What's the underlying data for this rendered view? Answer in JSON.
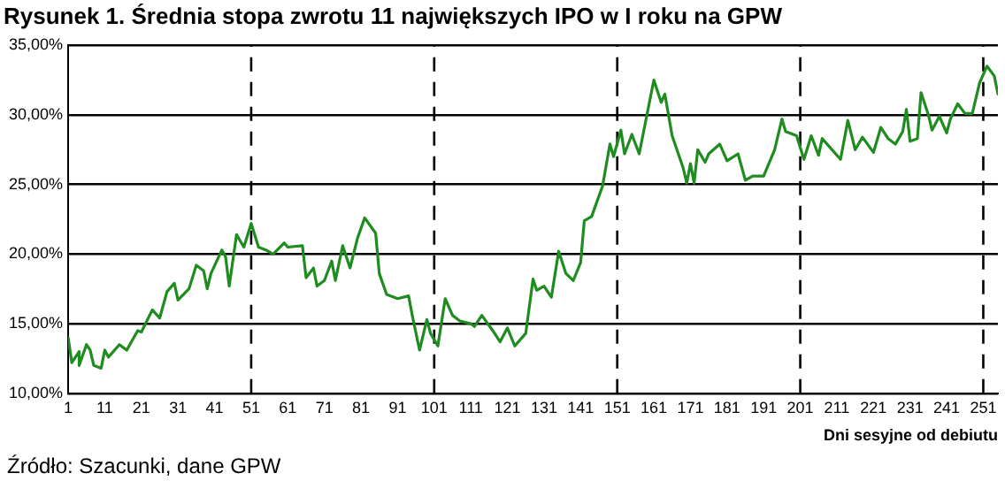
{
  "chart_data": {
    "type": "line",
    "title": "Rysunek 1. Średnia stopa zwrotu 11 największych IPO w I roku na GPW",
    "xlabel": "Dni sesyjne od debiutu",
    "annotations": [
      "Źródło: Szacunki, dane GPW"
    ],
    "x": [
      1,
      2,
      4,
      4,
      6,
      7,
      8,
      10,
      11,
      12,
      15,
      17,
      20,
      21,
      24,
      26,
      28,
      30,
      31,
      34,
      36,
      38,
      39,
      40,
      43,
      44,
      45,
      47,
      49,
      51,
      53,
      55,
      57,
      60,
      61,
      65,
      66,
      68,
      69,
      71,
      73,
      74,
      76,
      78,
      80,
      82,
      85,
      86,
      88,
      91,
      94,
      95,
      97,
      99,
      100,
      102,
      104,
      106,
      108,
      111,
      112,
      114,
      117,
      119,
      121,
      123,
      126,
      128,
      129,
      131,
      133,
      135,
      137,
      139,
      141,
      142,
      144,
      147,
      149,
      150,
      152,
      153,
      155,
      157,
      161,
      163,
      164,
      166,
      169,
      170,
      171,
      172,
      173,
      175,
      176,
      179,
      181,
      184,
      186,
      188,
      191,
      194,
      196,
      197,
      200,
      202,
      204,
      206,
      207,
      209,
      212,
      214,
      216,
      218,
      221,
      223,
      225,
      227,
      229,
      230,
      231,
      233,
      234,
      236,
      237,
      239,
      241,
      242,
      244,
      246,
      248,
      250,
      252,
      254,
      255
    ],
    "series": [
      {
        "color": "#1e8c1e",
        "values": [
          14.0,
          12.2,
          13.0,
          12.0,
          13.5,
          13.1,
          12.0,
          11.8,
          13.1,
          12.6,
          13.5,
          13.1,
          14.5,
          14.4,
          16.0,
          15.4,
          17.3,
          17.9,
          16.7,
          17.5,
          19.2,
          18.8,
          17.5,
          18.6,
          20.3,
          19.8,
          17.7,
          21.4,
          20.5,
          22.2,
          20.5,
          20.3,
          20.0,
          20.8,
          20.5,
          20.6,
          18.3,
          19.0,
          17.7,
          18.1,
          19.5,
          18.1,
          20.6,
          19.0,
          21.1,
          22.6,
          21.5,
          18.6,
          17.1,
          16.8,
          17.0,
          15.6,
          13.1,
          15.3,
          14.3,
          13.4,
          16.8,
          15.6,
          15.2,
          15.0,
          14.8,
          15.6,
          14.5,
          13.7,
          14.7,
          13.4,
          14.3,
          18.2,
          17.4,
          17.7,
          16.9,
          20.2,
          18.6,
          18.1,
          19.4,
          22.4,
          22.7,
          24.9,
          27.9,
          27.0,
          28.9,
          27.2,
          28.6,
          27.2,
          32.5,
          30.9,
          31.5,
          28.5,
          26.2,
          25.1,
          26.5,
          25.1,
          27.5,
          26.6,
          27.2,
          27.9,
          26.7,
          27.2,
          25.3,
          25.6,
          25.6,
          27.5,
          29.7,
          28.8,
          28.5,
          26.8,
          28.5,
          27.1,
          28.3,
          27.7,
          26.8,
          29.6,
          27.5,
          28.4,
          27.3,
          29.1,
          28.3,
          27.9,
          28.8,
          30.4,
          28.1,
          28.3,
          31.6,
          30.0,
          28.9,
          29.9,
          28.7,
          29.7,
          30.8,
          30.1,
          30.1,
          32.3,
          33.5,
          32.8,
          31.5
        ]
      }
    ],
    "xlim": [
      1,
      255
    ],
    "xticks": [
      1,
      11,
      21,
      31,
      41,
      51,
      61,
      71,
      81,
      91,
      101,
      111,
      121,
      131,
      141,
      151,
      161,
      171,
      181,
      191,
      201,
      211,
      221,
      231,
      241,
      251
    ],
    "ylim": [
      10,
      35
    ],
    "yticks": [
      {
        "value": 10,
        "label": "10,00%"
      },
      {
        "value": 15,
        "label": "15,00%"
      },
      {
        "value": 20,
        "label": "20,00%"
      },
      {
        "value": 25,
        "label": "25,00%"
      },
      {
        "value": 30,
        "label": "30,00%"
      },
      {
        "value": 35,
        "label": "35,00%"
      }
    ],
    "grid": "y",
    "legend": false,
    "marker": "none",
    "line_style": "solid",
    "ref_lines": [
      {
        "axis": "x",
        "value": 51,
        "color": "#000000",
        "line_style": "dashed"
      },
      {
        "axis": "x",
        "value": 101,
        "color": "#000000",
        "line_style": "dashed"
      },
      {
        "axis": "x",
        "value": 151,
        "color": "#000000",
        "line_style": "dashed"
      },
      {
        "axis": "x",
        "value": 201,
        "color": "#000000",
        "line_style": "dashed"
      },
      {
        "axis": "x",
        "value": 251,
        "color": "#000000",
        "line_style": "dashed"
      }
    ]
  }
}
